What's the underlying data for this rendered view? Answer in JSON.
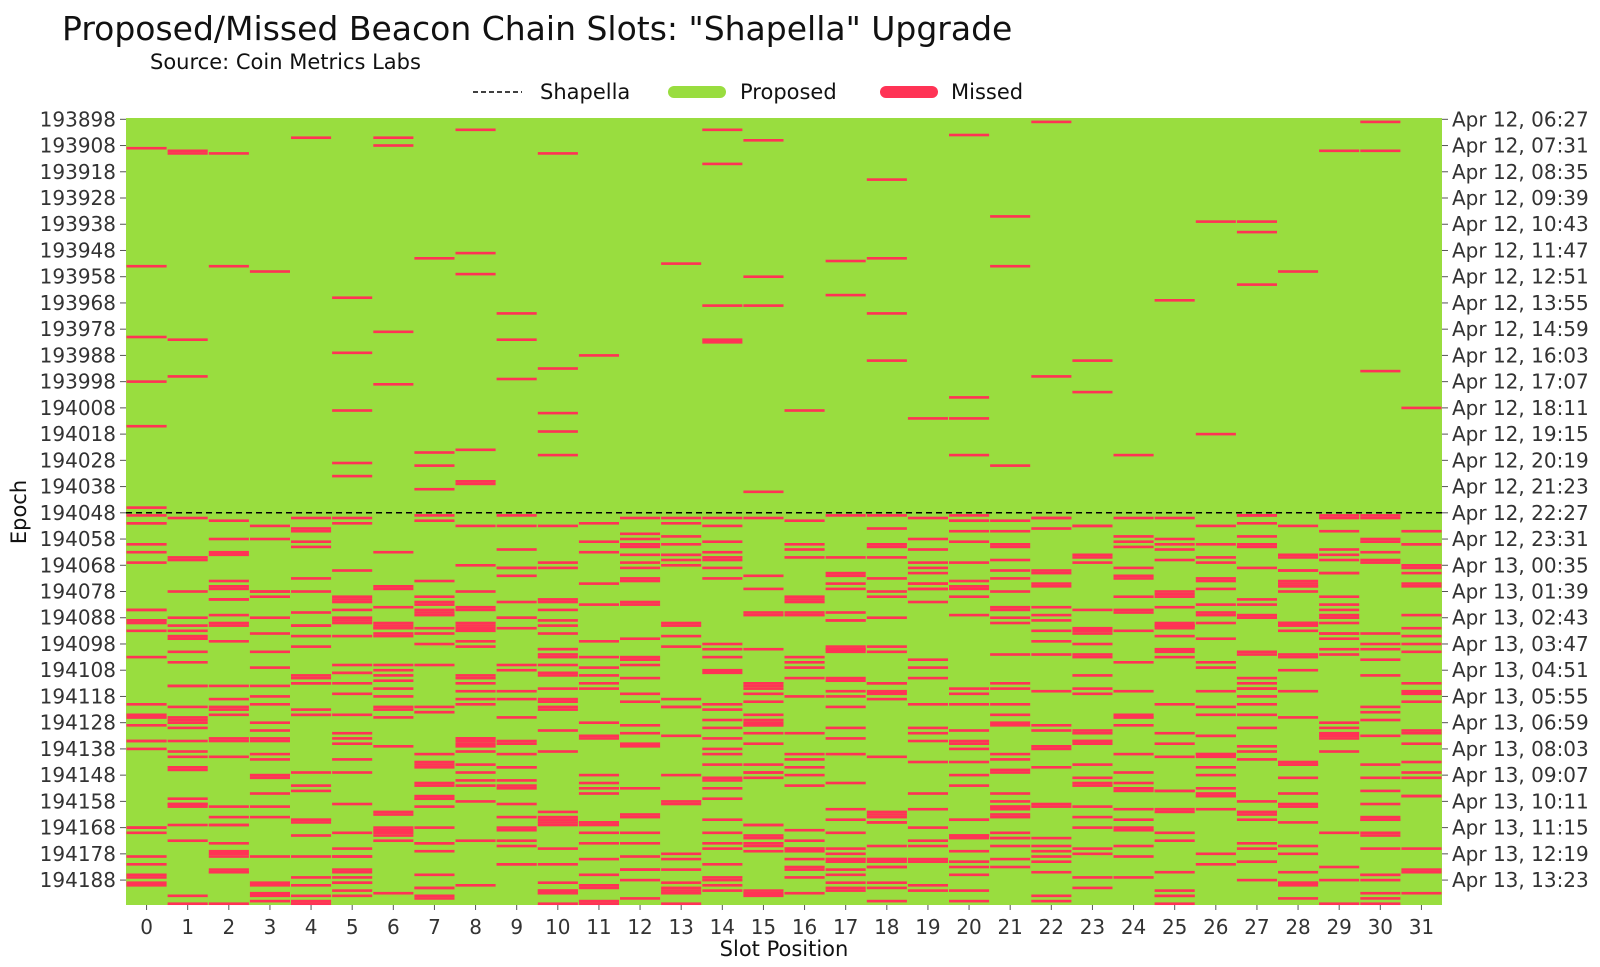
{
  "chart_data": {
    "type": "heatmap",
    "title": "Proposed/Missed Beacon Chain Slots: \"Shapella\" Upgrade",
    "subtitle": "Source: Coin Metrics Labs",
    "xlabel": "Slot Position",
    "ylabel": "Epoch",
    "x_categories": [
      0,
      1,
      2,
      3,
      4,
      5,
      6,
      7,
      8,
      9,
      10,
      11,
      12,
      13,
      14,
      15,
      16,
      17,
      18,
      19,
      20,
      21,
      22,
      23,
      24,
      25,
      26,
      27,
      28,
      29,
      30,
      31
    ],
    "x_tick_labels": [
      "0",
      "1",
      "2",
      "3",
      "4",
      "5",
      "6",
      "7",
      "8",
      "9",
      "10",
      "11",
      "12",
      "13",
      "14",
      "15",
      "16",
      "17",
      "18",
      "19",
      "20",
      "21",
      "22",
      "23",
      "24",
      "25",
      "26",
      "27",
      "28",
      "29",
      "30",
      "31"
    ],
    "epoch_range": [
      193898,
      194197
    ],
    "y_ticks_left": [
      "193898",
      "193908",
      "193918",
      "193928",
      "193938",
      "193948",
      "193958",
      "193968",
      "193978",
      "193988",
      "193998",
      "194008",
      "194018",
      "194028",
      "194038",
      "194048",
      "194058",
      "194068",
      "194078",
      "194088",
      "194098",
      "194108",
      "194118",
      "194128",
      "194138",
      "194148",
      "194158",
      "194168",
      "194178",
      "194188"
    ],
    "y_ticks_right": [
      "Apr 12, 06:27",
      "Apr 12, 07:31",
      "Apr 12, 08:35",
      "Apr 12, 09:39",
      "Apr 12, 10:43",
      "Apr 12, 11:47",
      "Apr 12, 12:51",
      "Apr 12, 13:55",
      "Apr 12, 14:59",
      "Apr 12, 16:03",
      "Apr 12, 17:07",
      "Apr 12, 18:11",
      "Apr 12, 19:15",
      "Apr 12, 20:19",
      "Apr 12, 21:23",
      "Apr 12, 22:27",
      "Apr 12, 23:31",
      "Apr 13, 00:35",
      "Apr 13, 01:39",
      "Apr 13, 02:43",
      "Apr 13, 03:47",
      "Apr 13, 04:51",
      "Apr 13, 05:55",
      "Apr 13, 06:59",
      "Apr 13, 08:03",
      "Apr 13, 09:07",
      "Apr 13, 10:11",
      "Apr 13, 11:15",
      "Apr 13, 12:19",
      "Apr 13, 13:23"
    ],
    "shapella_epoch": 194048,
    "legend": {
      "placement": "top",
      "items": [
        {
          "label": "Shapella",
          "kind": "dashed-line",
          "color": "#000000"
        },
        {
          "label": "Proposed",
          "kind": "fill",
          "color": "#99dd3f"
        },
        {
          "label": "Missed",
          "kind": "fill",
          "color": "#ff3355"
        }
      ]
    },
    "colors": {
      "proposed": "#99dd3f",
      "missed": "#ff3355",
      "shapella_line": "#000000"
    },
    "missed_before_shapella": [
      [
        0,
        193909
      ],
      [
        0,
        193954
      ],
      [
        0,
        193981
      ],
      [
        0,
        193998
      ],
      [
        0,
        194015
      ],
      [
        0,
        194046
      ],
      [
        1,
        193910
      ],
      [
        1,
        193911
      ],
      [
        1,
        193982
      ],
      [
        1,
        193996
      ],
      [
        2,
        193911
      ],
      [
        2,
        193954
      ],
      [
        3,
        193956
      ],
      [
        4,
        193905
      ],
      [
        5,
        193966
      ],
      [
        5,
        193987
      ],
      [
        5,
        194009
      ],
      [
        5,
        194029
      ],
      [
        5,
        194034
      ],
      [
        6,
        193905
      ],
      [
        6,
        193908
      ],
      [
        6,
        193979
      ],
      [
        6,
        193999
      ],
      [
        7,
        193951
      ],
      [
        7,
        194025
      ],
      [
        7,
        194030
      ],
      [
        7,
        194039
      ],
      [
        8,
        193902
      ],
      [
        8,
        193949
      ],
      [
        8,
        193957
      ],
      [
        8,
        194024
      ],
      [
        8,
        194036
      ],
      [
        8,
        194037
      ],
      [
        9,
        193972
      ],
      [
        9,
        193982
      ],
      [
        9,
        193997
      ],
      [
        10,
        193911
      ],
      [
        10,
        193993
      ],
      [
        10,
        194010
      ],
      [
        10,
        194017
      ],
      [
        10,
        194026
      ],
      [
        11,
        193988
      ],
      [
        13,
        193953
      ],
      [
        14,
        193902
      ],
      [
        14,
        193915
      ],
      [
        14,
        193969
      ],
      [
        14,
        193982
      ],
      [
        14,
        193983
      ],
      [
        15,
        193906
      ],
      [
        15,
        193958
      ],
      [
        15,
        193969
      ],
      [
        15,
        194040
      ],
      [
        16,
        194009
      ],
      [
        17,
        193952
      ],
      [
        17,
        193965
      ],
      [
        18,
        193921
      ],
      [
        18,
        193951
      ],
      [
        18,
        193972
      ],
      [
        18,
        193990
      ],
      [
        19,
        194012
      ],
      [
        20,
        193904
      ],
      [
        20,
        194004
      ],
      [
        20,
        194012
      ],
      [
        20,
        194026
      ],
      [
        21,
        193935
      ],
      [
        21,
        193954
      ],
      [
        21,
        194030
      ],
      [
        22,
        193899
      ],
      [
        22,
        193996
      ],
      [
        23,
        193990
      ],
      [
        23,
        194002
      ],
      [
        24,
        194026
      ],
      [
        25,
        193967
      ],
      [
        26,
        193937
      ],
      [
        26,
        194018
      ],
      [
        27,
        193937
      ],
      [
        27,
        193941
      ],
      [
        27,
        193961
      ],
      [
        28,
        193956
      ],
      [
        29,
        193910
      ],
      [
        30,
        193899
      ],
      [
        30,
        193910
      ],
      [
        30,
        193994
      ],
      [
        31,
        194008
      ]
    ],
    "missed_after_shapella": {
      "missed_per_slot_after": [
        30,
        31,
        33,
        29,
        32,
        34,
        28,
        35,
        30,
        31,
        36,
        29,
        33,
        27,
        34,
        32,
        30,
        35,
        31,
        28,
        33,
        36,
        29,
        32,
        30,
        34,
        31,
        33,
        35,
        29,
        32,
        30
      ],
      "seed": 20230412
    }
  }
}
